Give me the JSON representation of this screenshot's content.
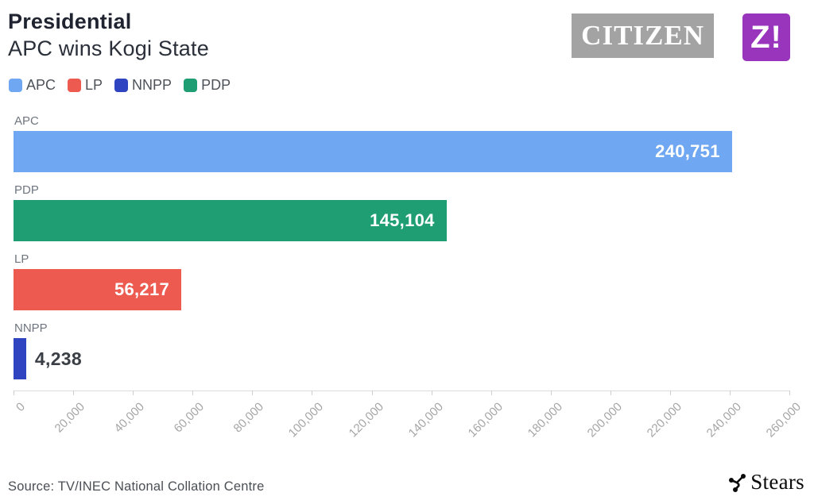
{
  "header": {
    "title": "Presidential",
    "subtitle": "APC wins Kogi State",
    "logos": {
      "citizen": "CITIZEN",
      "z": "Z!"
    }
  },
  "legend": [
    {
      "label": "APC",
      "color": "#6fa7f2"
    },
    {
      "label": "LP",
      "color": "#ec5a50"
    },
    {
      "label": "NNPP",
      "color": "#2e44c0"
    },
    {
      "label": "PDP",
      "color": "#1f9e74"
    }
  ],
  "chart_data": {
    "type": "bar",
    "orientation": "horizontal",
    "title": "Presidential — APC wins Kogi State",
    "categories": [
      "APC",
      "PDP",
      "LP",
      "NNPP"
    ],
    "values": [
      240751,
      145104,
      56217,
      4238
    ],
    "value_labels": [
      "240,751",
      "145,104",
      "56,217",
      "4,238"
    ],
    "colors": [
      "#6fa7f2",
      "#1f9e74",
      "#ec5a50",
      "#2e44c0"
    ],
    "xlabel": "",
    "ylabel": "",
    "xlim": [
      0,
      260000
    ],
    "x_tick_step": 20000,
    "x_ticks": [
      "0",
      "20,000",
      "40,000",
      "60,000",
      "80,000",
      "100,000",
      "120,000",
      "140,000",
      "160,000",
      "180,000",
      "200,000",
      "220,000",
      "240,000",
      "260,000"
    ],
    "grid": false,
    "legend_position": "top"
  },
  "footer": {
    "source": "Source: TV/INEC National Collation Centre",
    "brand": "Stears"
  }
}
